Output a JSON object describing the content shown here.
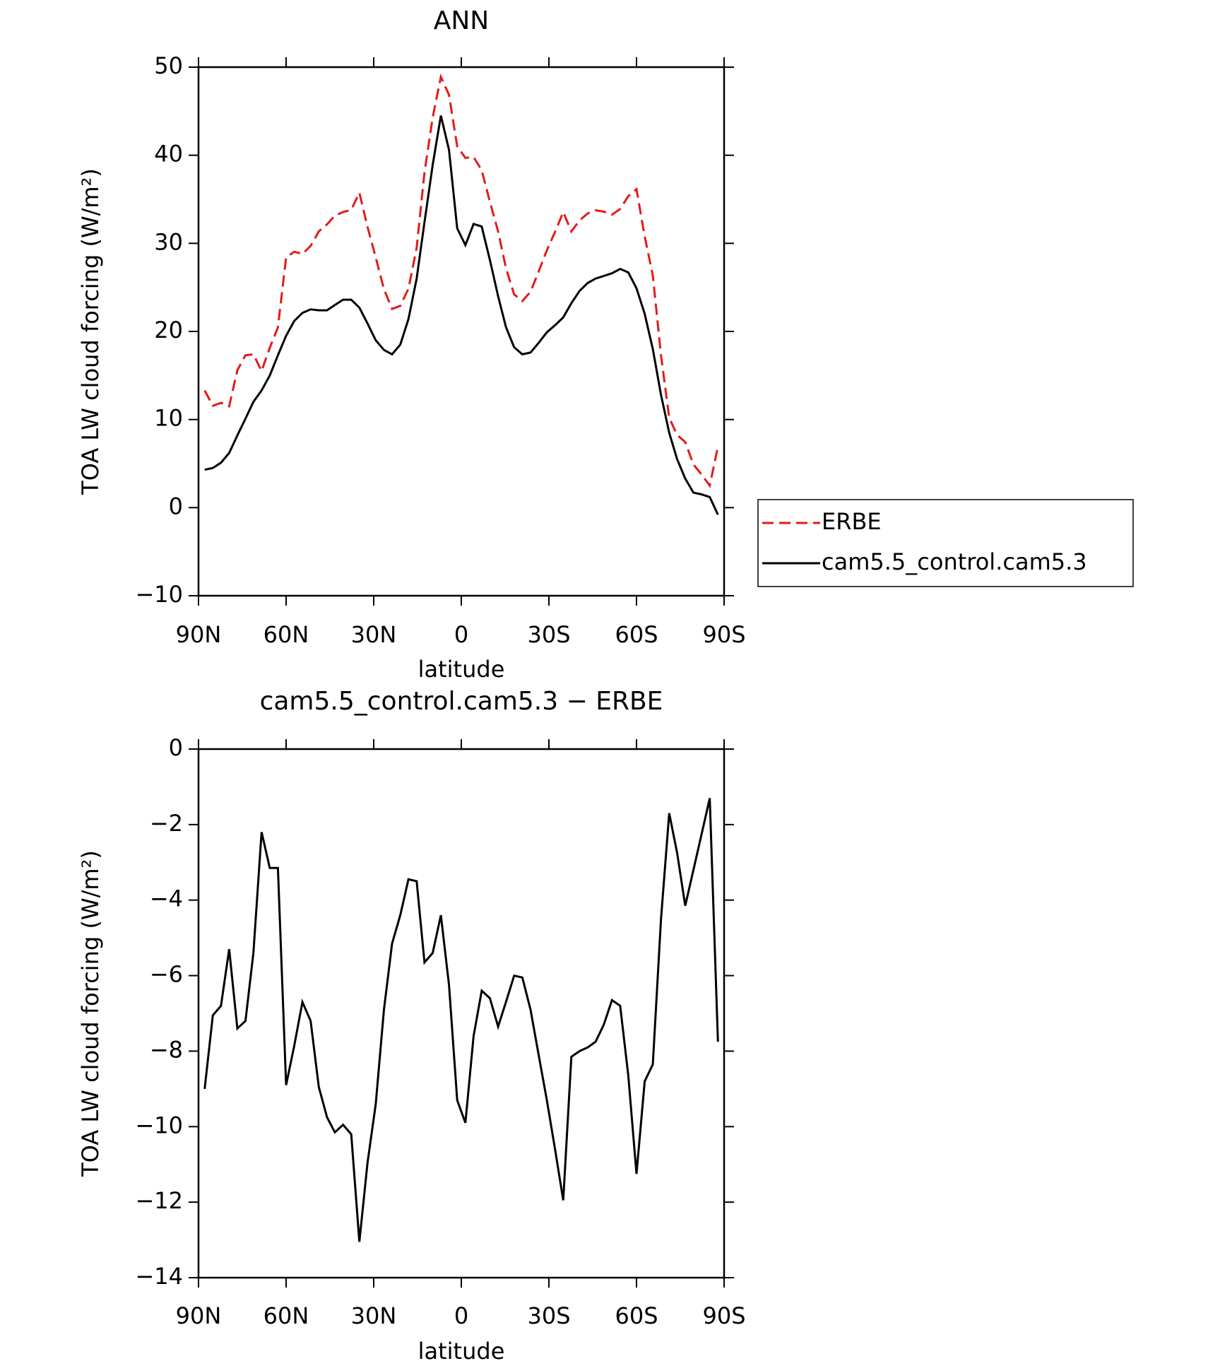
{
  "chart_data": [
    {
      "type": "line",
      "title": "ANN",
      "xlabel": "latitude",
      "ylabel": "TOA LW cloud forcing (W/m²)",
      "x": [
        87.9,
        85.1,
        82.3,
        79.5,
        76.7,
        73.9,
        71.2,
        68.4,
        65.6,
        62.8,
        60.0,
        57.2,
        54.4,
        51.6,
        48.8,
        46.0,
        43.3,
        40.5,
        37.7,
        34.9,
        32.1,
        29.3,
        26.5,
        23.7,
        20.9,
        18.1,
        15.3,
        12.6,
        9.8,
        7.0,
        4.2,
        1.4,
        -1.4,
        -4.2,
        -7.0,
        -9.8,
        -12.6,
        -15.3,
        -18.1,
        -20.9,
        -23.7,
        -26.5,
        -29.3,
        -32.1,
        -34.9,
        -37.7,
        -40.5,
        -43.3,
        -46.0,
        -48.8,
        -51.6,
        -54.4,
        -57.2,
        -60.0,
        -62.8,
        -65.6,
        -68.4,
        -71.2,
        -73.9,
        -76.7,
        -79.5,
        -82.3,
        -85.1,
        -87.9
      ],
      "series": [
        {
          "name": "ERBE",
          "color": "#e31a1c",
          "dashed": true,
          "values": [
            13.3,
            11.55,
            11.9,
            11.5,
            15.6,
            17.3,
            17.4,
            15.5,
            18.15,
            20.45,
            28.4,
            29.05,
            28.8,
            29.7,
            31.35,
            32.15,
            33.15,
            33.55,
            33.8,
            35.75,
            31.85,
            28.4,
            24.8,
            22.55,
            22.9,
            24.85,
            29.5,
            38.05,
            44.3,
            48.9,
            46.85,
            41.0,
            39.7,
            39.8,
            38.3,
            34.7,
            31.35,
            27.2,
            24.2,
            23.45,
            24.5,
            26.8,
            29.2,
            31.3,
            33.55,
            31.35,
            32.6,
            33.4,
            33.75,
            33.6,
            33.25,
            33.9,
            35.35,
            36.15,
            30.8,
            26.35,
            17.3,
            10.2,
            8.25,
            7.45,
            4.9,
            3.75,
            2.5,
            6.95
          ]
        },
        {
          "name": "cam5.5_control.cam5.3",
          "color": "#000000",
          "dashed": false,
          "values": [
            4.3,
            4.5,
            5.1,
            6.2,
            8.2,
            10.1,
            12.0,
            13.3,
            15.0,
            17.3,
            19.5,
            21.2,
            22.1,
            22.5,
            22.4,
            22.4,
            23.0,
            23.6,
            23.6,
            22.7,
            20.9,
            19.0,
            17.9,
            17.4,
            18.5,
            21.4,
            26.0,
            32.4,
            38.9,
            44.5,
            40.6,
            31.7,
            29.8,
            32.2,
            31.9,
            28.1,
            24.0,
            20.5,
            18.2,
            17.4,
            17.6,
            18.7,
            19.9,
            20.7,
            21.6,
            23.2,
            24.6,
            25.5,
            26.0,
            26.3,
            26.6,
            27.1,
            26.7,
            24.9,
            22.0,
            18.0,
            12.8,
            8.5,
            5.5,
            3.3,
            1.7,
            1.5,
            1.2,
            -0.8
          ]
        }
      ],
      "xlim": [
        90,
        -90
      ],
      "xticks": [
        {
          "value": 90,
          "label": "90N"
        },
        {
          "value": 60,
          "label": "60N"
        },
        {
          "value": 30,
          "label": "30N"
        },
        0,
        {
          "value": -30,
          "label": "30S"
        },
        {
          "value": -60,
          "label": "60S"
        },
        {
          "value": -90,
          "label": "90S"
        }
      ],
      "ylim": [
        -10,
        50
      ],
      "yticks": [
        {
          "value": -10,
          "label": "−10"
        },
        0,
        10,
        20,
        30,
        40,
        50
      ],
      "legend": "right"
    },
    {
      "type": "line",
      "title": "cam5.5_control.cam5.3 − ERBE",
      "xlabel": "latitude",
      "ylabel": "TOA LW cloud forcing (W/m²)",
      "x": [
        87.9,
        85.1,
        82.3,
        79.5,
        76.7,
        73.9,
        71.2,
        68.4,
        65.6,
        62.8,
        60.0,
        57.2,
        54.4,
        51.6,
        48.8,
        46.0,
        43.3,
        40.5,
        37.7,
        34.9,
        32.1,
        29.3,
        26.5,
        23.7,
        20.9,
        18.1,
        15.3,
        12.6,
        9.8,
        7.0,
        4.2,
        1.4,
        -1.4,
        -4.2,
        -7.0,
        -9.8,
        -12.6,
        -15.3,
        -18.1,
        -20.9,
        -23.7,
        -26.5,
        -29.3,
        -32.1,
        -34.9,
        -37.7,
        -40.5,
        -43.3,
        -46.0,
        -48.8,
        -51.6,
        -54.4,
        -57.2,
        -60.0,
        -62.8,
        -65.6,
        -68.4,
        -71.2,
        -73.9,
        -76.7,
        -79.5,
        -82.3,
        -85.1,
        -87.9
      ],
      "color": "#000000",
      "values": [
        -9.0,
        -7.05,
        -6.8,
        -5.3,
        -7.4,
        -7.2,
        -5.4,
        -2.2,
        -3.15,
        -3.15,
        -8.9,
        -7.85,
        -6.7,
        -7.2,
        -8.95,
        -9.75,
        -10.15,
        -9.95,
        -10.2,
        -13.05,
        -10.95,
        -9.4,
        -6.9,
        -5.15,
        -4.4,
        -3.45,
        -3.5,
        -5.65,
        -5.4,
        -4.4,
        -6.25,
        -9.3,
        -9.9,
        -7.6,
        -6.4,
        -6.6,
        -7.35,
        -6.7,
        -6.0,
        -6.05,
        -6.9,
        -8.1,
        -9.3,
        -10.6,
        -11.95,
        -8.15,
        -8.0,
        -7.9,
        -7.75,
        -7.3,
        -6.65,
        -6.8,
        -8.65,
        -11.25,
        -8.8,
        -8.35,
        -4.5,
        -1.7,
        -2.75,
        -4.15,
        -3.2,
        -2.25,
        -1.3,
        -7.75
      ],
      "xlim": [
        90,
        -90
      ],
      "xticks": [
        {
          "value": 90,
          "label": "90N"
        },
        {
          "value": 60,
          "label": "60N"
        },
        {
          "value": 30,
          "label": "30N"
        },
        0,
        {
          "value": -30,
          "label": "30S"
        },
        {
          "value": -60,
          "label": "60S"
        },
        {
          "value": -90,
          "label": "90S"
        }
      ],
      "ylim": [
        -14,
        0
      ],
      "yticks": [
        {
          "value": -14,
          "label": "−14"
        },
        {
          "value": -12,
          "label": "−12"
        },
        {
          "value": -10,
          "label": "−10"
        },
        {
          "value": -8,
          "label": "−8"
        },
        {
          "value": -6,
          "label": "−6"
        },
        {
          "value": -4,
          "label": "−4"
        },
        {
          "value": -2,
          "label": "−2"
        },
        0
      ]
    }
  ]
}
